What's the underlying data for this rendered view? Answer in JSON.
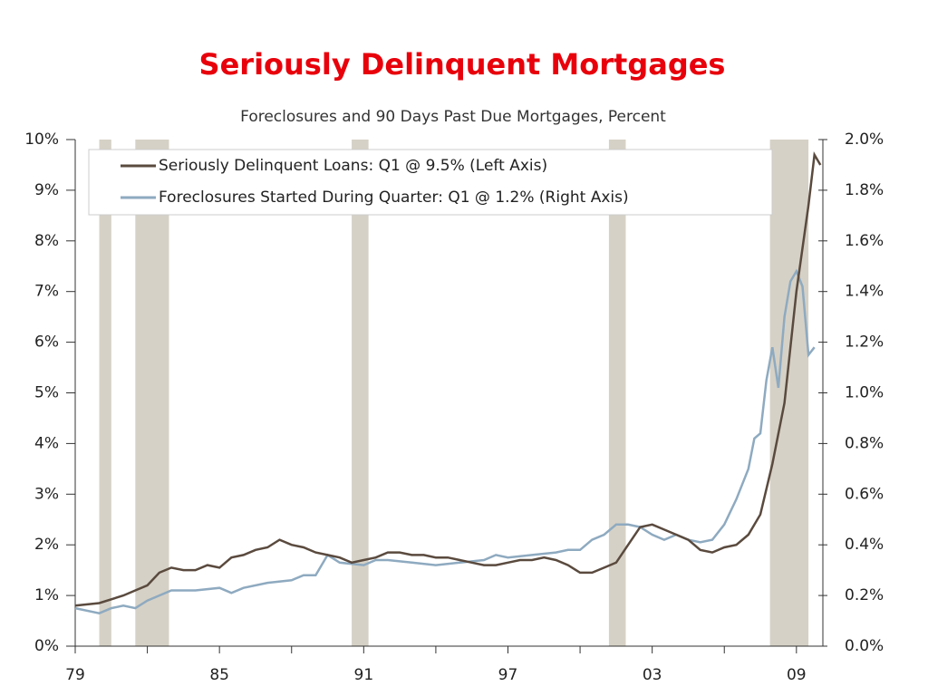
{
  "chart_data": {
    "type": "line",
    "title": "Seriously Delinquent Mortgages",
    "subtitle": "Foreclosures and 90 Days Past Due Mortgages, Percent",
    "xlim": [
      1979,
      2010.1
    ],
    "xticks": [
      {
        "value": 1979,
        "label": "79"
      },
      {
        "value": 1985,
        "label": "85"
      },
      {
        "value": 1991,
        "label": "91"
      },
      {
        "value": 1997,
        "label": "97"
      },
      {
        "value": 2003,
        "label": "03"
      },
      {
        "value": 2009,
        "label": "09"
      }
    ],
    "xminorticks": [
      1982,
      1988,
      1994,
      2000,
      2006
    ],
    "ylim": [
      0,
      10
    ],
    "yticks": [
      {
        "value": 0,
        "label": "0%"
      },
      {
        "value": 1,
        "label": "1%"
      },
      {
        "value": 2,
        "label": "2%"
      },
      {
        "value": 3,
        "label": "3%"
      },
      {
        "value": 4,
        "label": "4%"
      },
      {
        "value": 5,
        "label": "5%"
      },
      {
        "value": 6,
        "label": "6%"
      },
      {
        "value": 7,
        "label": "7%"
      },
      {
        "value": 8,
        "label": "8%"
      },
      {
        "value": 9,
        "label": "9%"
      },
      {
        "value": 10,
        "label": "10%"
      }
    ],
    "y2lim": [
      0,
      2
    ],
    "y2ticks": [
      {
        "value": 0,
        "label": "0.0%"
      },
      {
        "value": 0.2,
        "label": "0.2%"
      },
      {
        "value": 0.4,
        "label": "0.4%"
      },
      {
        "value": 0.6,
        "label": "0.6%"
      },
      {
        "value": 0.8,
        "label": "0.8%"
      },
      {
        "value": 1.0,
        "label": "1.0%"
      },
      {
        "value": 1.2,
        "label": "1.2%"
      },
      {
        "value": 1.4,
        "label": "1.4%"
      },
      {
        "value": 1.6,
        "label": "1.6%"
      },
      {
        "value": 1.8,
        "label": "1.8%"
      },
      {
        "value": 2.0,
        "label": "2.0%"
      }
    ],
    "recessions": [
      [
        1980.0,
        1980.5
      ],
      [
        1981.5,
        1982.9
      ],
      [
        1990.5,
        1991.2
      ],
      [
        2001.2,
        2001.9
      ],
      [
        2007.9,
        2009.5
      ]
    ],
    "recession_color": "#d6d1c6",
    "legend": "top-left",
    "series": [
      {
        "name": "Seriously Delinquent Loans: Q1 @ 9.5% (Left Axis)",
        "color": "#5a4a3e",
        "axis": "y",
        "x": [
          1979,
          1980,
          1981,
          1981.5,
          1982,
          1982.5,
          1983,
          1983.5,
          1984,
          1984.5,
          1985,
          1985.5,
          1986,
          1986.5,
          1987,
          1987.5,
          1988,
          1988.5,
          1989,
          1989.5,
          1990,
          1990.5,
          1991,
          1991.5,
          1992,
          1992.5,
          1993,
          1993.5,
          1994,
          1994.5,
          1995,
          1995.5,
          1996,
          1996.5,
          1997,
          1997.5,
          1998,
          1998.5,
          1999,
          1999.5,
          2000,
          2000.5,
          2001,
          2001.5,
          2002,
          2002.5,
          2003,
          2003.5,
          2004,
          2004.5,
          2005,
          2005.5,
          2006,
          2006.5,
          2007,
          2007.5,
          2008,
          2008.5,
          2009,
          2009.5,
          2009.75,
          2010
        ],
        "values": [
          0.8,
          0.85,
          1.0,
          1.1,
          1.2,
          1.45,
          1.55,
          1.5,
          1.5,
          1.6,
          1.55,
          1.75,
          1.8,
          1.9,
          1.95,
          2.1,
          2.0,
          1.95,
          1.85,
          1.8,
          1.75,
          1.65,
          1.7,
          1.75,
          1.85,
          1.85,
          1.8,
          1.8,
          1.75,
          1.75,
          1.7,
          1.65,
          1.6,
          1.6,
          1.65,
          1.7,
          1.7,
          1.75,
          1.7,
          1.6,
          1.45,
          1.45,
          1.55,
          1.65,
          2.0,
          2.35,
          2.4,
          2.3,
          2.2,
          2.1,
          1.9,
          1.85,
          1.95,
          2.0,
          2.2,
          2.6,
          3.6,
          4.8,
          7.0,
          8.7,
          9.7,
          9.5
        ]
      },
      {
        "name": "Foreclosures Started During Quarter: Q1 @ 1.2% (Right Axis)",
        "color": "#8eaac0",
        "axis": "y2",
        "x": [
          1979,
          1980,
          1980.5,
          1981,
          1981.5,
          1982,
          1983,
          1984,
          1985,
          1985.5,
          1986,
          1987,
          1988,
          1988.5,
          1989,
          1989.5,
          1990,
          1991,
          1991.5,
          1992,
          1993,
          1994,
          1995,
          1996,
          1996.5,
          1997,
          1998,
          1999,
          1999.5,
          2000,
          2000.5,
          2001,
          2001.5,
          2002,
          2002.5,
          2003,
          2003.5,
          2004,
          2004.5,
          2005,
          2005.5,
          2006,
          2006.5,
          2007,
          2007.25,
          2007.5,
          2007.75,
          2008,
          2008.25,
          2008.5,
          2008.75,
          2009,
          2009.25,
          2009.5,
          2009.75
        ],
        "values": [
          0.15,
          0.13,
          0.15,
          0.16,
          0.15,
          0.18,
          0.22,
          0.22,
          0.23,
          0.21,
          0.23,
          0.25,
          0.26,
          0.28,
          0.28,
          0.36,
          0.33,
          0.32,
          0.34,
          0.34,
          0.33,
          0.32,
          0.33,
          0.34,
          0.36,
          0.35,
          0.36,
          0.37,
          0.38,
          0.38,
          0.42,
          0.44,
          0.48,
          0.48,
          0.47,
          0.44,
          0.42,
          0.44,
          0.42,
          0.41,
          0.42,
          0.48,
          0.58,
          0.7,
          0.82,
          0.84,
          1.05,
          1.18,
          1.02,
          1.3,
          1.44,
          1.48,
          1.42,
          1.15,
          1.18
        ]
      }
    ]
  }
}
